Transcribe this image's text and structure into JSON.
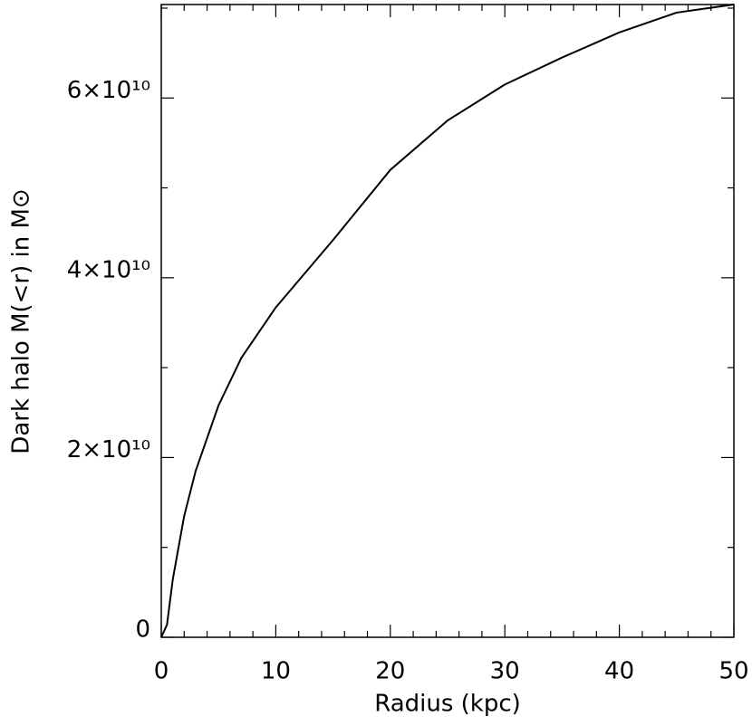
{
  "chart_data": {
    "type": "line",
    "x_label": "Radius (kpc)",
    "y_label": "Dark halo M(<r) in M⊙",
    "x": [
      0,
      0.5,
      1,
      2,
      3,
      5,
      7,
      10,
      15,
      20,
      25,
      30,
      35,
      40,
      45,
      50
    ],
    "series": [
      {
        "name": "M(<r)",
        "color": "#000000",
        "values": [
          0,
          1400000000.0,
          6400000000.0,
          13500000000.0,
          18500000000.0,
          25800000000.0,
          31100000000.0,
          36700000000.0,
          44200000000.0,
          52000000000.0,
          57500000000.0,
          61500000000.0,
          64500000000.0,
          67300000000.0,
          69500000000.0,
          70400000000.0
        ]
      }
    ],
    "xlim": [
      0,
      50
    ],
    "xticks": [
      0,
      10,
      20,
      30,
      40,
      50
    ],
    "xminor": [
      2,
      4,
      6,
      8,
      12,
      14,
      16,
      18,
      22,
      24,
      26,
      28,
      32,
      34,
      36,
      38,
      42,
      44,
      46,
      48
    ],
    "ylim": [
      0,
      70400000000.0
    ],
    "yticks": [
      0,
      {
        "value": 20000000000,
        "label": "2×10¹⁰"
      },
      {
        "value": 40000000000,
        "label": "4×10¹⁰"
      },
      {
        "value": 60000000000,
        "label": "6×10¹⁰"
      }
    ],
    "yminor": [
      10000000000,
      30000000000,
      50000000000,
      70000000000
    ],
    "grid": false
  }
}
